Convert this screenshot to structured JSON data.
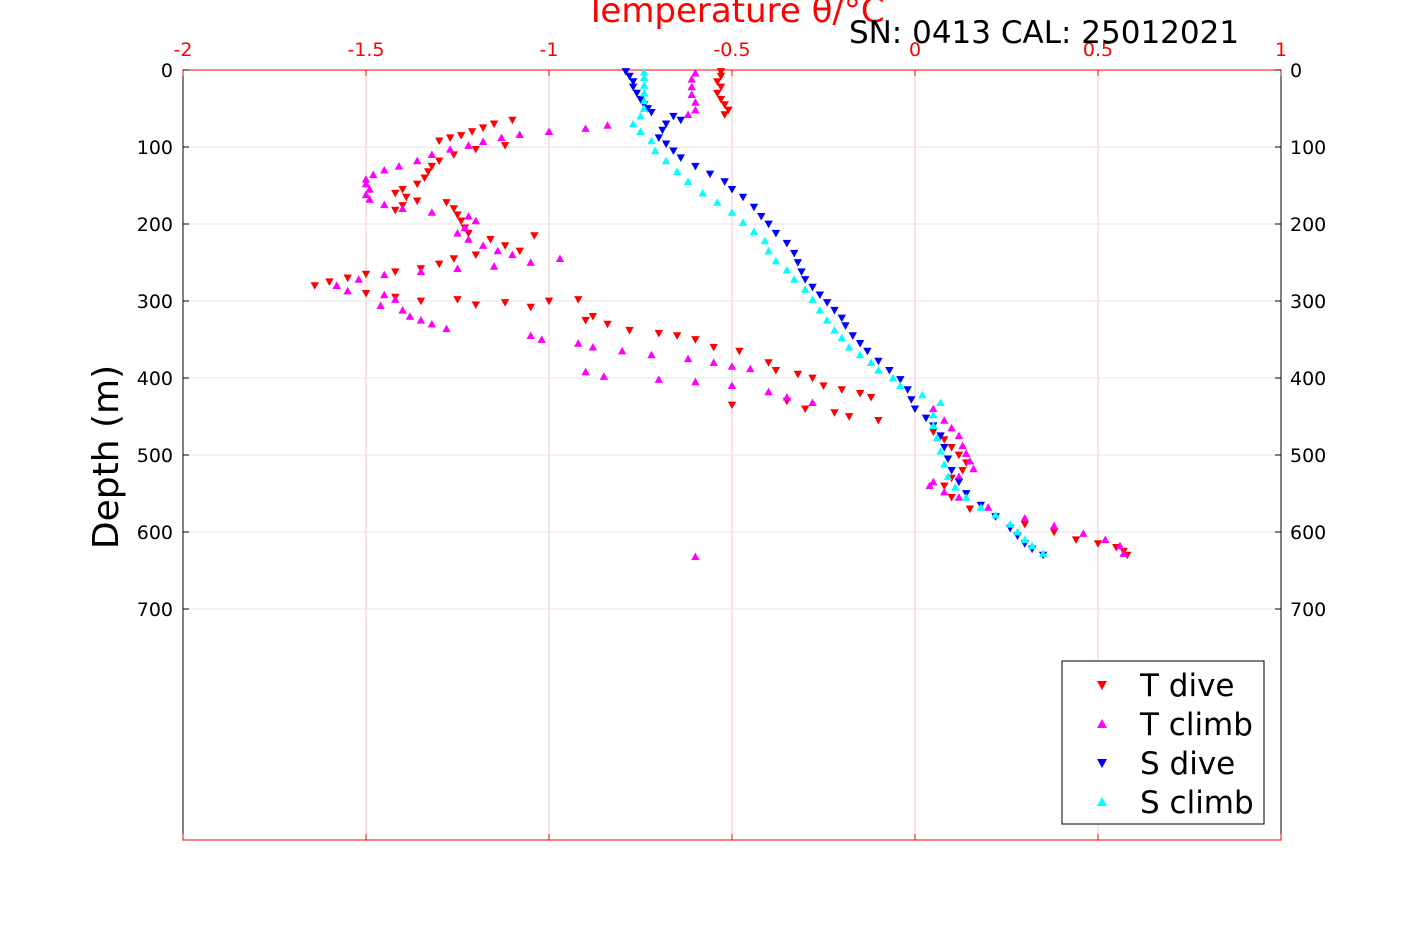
{
  "chart_data": {
    "type": "scatter",
    "title": "Temperature θ/°C",
    "subtitle": "SN: 0413  CAL: 25012021",
    "ylabel": "Depth (m)",
    "xlim": [
      -2,
      1
    ],
    "ylim": [
      0,
      1000
    ],
    "y_reversed": true,
    "x_ticks": [
      "-2",
      "-1.5",
      "-1",
      "-0.5",
      "0",
      "0.5",
      "1"
    ],
    "x_tick_values": [
      -2,
      -1.5,
      -1,
      -0.5,
      0,
      0.5,
      1
    ],
    "y_ticks": [
      "0",
      "100",
      "200",
      "300",
      "400",
      "500",
      "600",
      "700"
    ],
    "y_tick_values": [
      0,
      100,
      200,
      300,
      400,
      500,
      600,
      700
    ],
    "grid": true,
    "legend_position": "bottom-right",
    "colors": {
      "axis_top": "#ff0000",
      "axis": "#000000",
      "grid": "#e4e4e4",
      "grid_red": "#f5c7c7"
    },
    "series": [
      {
        "name": "T dive",
        "marker": "triangle-down",
        "color": "#ff0000",
        "points": [
          [
            -0.53,
            2
          ],
          [
            -0.53,
            8
          ],
          [
            -0.54,
            15
          ],
          [
            -0.53,
            22
          ],
          [
            -0.54,
            30
          ],
          [
            -0.53,
            38
          ],
          [
            -0.52,
            45
          ],
          [
            -0.51,
            52
          ],
          [
            -0.52,
            58
          ],
          [
            -1.1,
            65
          ],
          [
            -1.15,
            70
          ],
          [
            -1.18,
            75
          ],
          [
            -1.21,
            80
          ],
          [
            -1.24,
            85
          ],
          [
            -1.27,
            88
          ],
          [
            -1.3,
            92
          ],
          [
            -1.12,
            98
          ],
          [
            -1.2,
            103
          ],
          [
            -1.26,
            110
          ],
          [
            -1.3,
            118
          ],
          [
            -1.32,
            125
          ],
          [
            -1.33,
            132
          ],
          [
            -1.34,
            140
          ],
          [
            -1.36,
            148
          ],
          [
            -1.4,
            155
          ],
          [
            -1.42,
            160
          ],
          [
            -1.39,
            165
          ],
          [
            -1.36,
            170
          ],
          [
            -1.4,
            176
          ],
          [
            -1.42,
            182
          ],
          [
            -1.28,
            172
          ],
          [
            -1.26,
            180
          ],
          [
            -1.25,
            188
          ],
          [
            -1.24,
            196
          ],
          [
            -1.23,
            205
          ],
          [
            -1.22,
            212
          ],
          [
            -1.16,
            220
          ],
          [
            -1.12,
            228
          ],
          [
            -1.08,
            235
          ],
          [
            -1.04,
            215
          ],
          [
            -1.2,
            240
          ],
          [
            -1.26,
            245
          ],
          [
            -1.3,
            252
          ],
          [
            -1.35,
            258
          ],
          [
            -1.42,
            262
          ],
          [
            -1.5,
            265
          ],
          [
            -1.55,
            270
          ],
          [
            -1.6,
            275
          ],
          [
            -1.64,
            280
          ],
          [
            -1.5,
            290
          ],
          [
            -1.42,
            295
          ],
          [
            -1.35,
            300
          ],
          [
            -1.25,
            298
          ],
          [
            -1.2,
            305
          ],
          [
            -1.12,
            302
          ],
          [
            -1.05,
            308
          ],
          [
            -1.0,
            300
          ],
          [
            -0.92,
            298
          ],
          [
            -0.88,
            320
          ],
          [
            -0.9,
            325
          ],
          [
            -0.84,
            330
          ],
          [
            -0.78,
            338
          ],
          [
            -0.7,
            342
          ],
          [
            -0.65,
            345
          ],
          [
            -0.6,
            350
          ],
          [
            -0.55,
            360
          ],
          [
            -0.48,
            365
          ],
          [
            -0.4,
            380
          ],
          [
            -0.38,
            390
          ],
          [
            -0.32,
            395
          ],
          [
            -0.28,
            400
          ],
          [
            -0.25,
            410
          ],
          [
            -0.2,
            415
          ],
          [
            -0.15,
            420
          ],
          [
            -0.12,
            425
          ],
          [
            -0.35,
            430
          ],
          [
            -0.5,
            435
          ],
          [
            -0.3,
            440
          ],
          [
            -0.22,
            445
          ],
          [
            -0.18,
            450
          ],
          [
            -0.1,
            455
          ],
          [
            0.05,
            470
          ],
          [
            0.08,
            480
          ],
          [
            0.1,
            490
          ],
          [
            0.12,
            500
          ],
          [
            0.14,
            510
          ],
          [
            0.13,
            520
          ],
          [
            0.1,
            530
          ],
          [
            0.08,
            540
          ],
          [
            0.1,
            555
          ],
          [
            0.15,
            570
          ],
          [
            0.22,
            580
          ],
          [
            0.3,
            590
          ],
          [
            0.38,
            600
          ],
          [
            0.44,
            610
          ],
          [
            0.5,
            615
          ],
          [
            0.55,
            620
          ],
          [
            0.57,
            625
          ],
          [
            0.58,
            630
          ]
        ]
      },
      {
        "name": "T climb",
        "marker": "triangle-up",
        "color": "#ff00ff",
        "points": [
          [
            -0.6,
            632
          ],
          [
            -0.6,
            4
          ],
          [
            -0.61,
            12
          ],
          [
            -0.61,
            22
          ],
          [
            -0.61,
            32
          ],
          [
            -0.6,
            42
          ],
          [
            -0.6,
            52
          ],
          [
            -0.62,
            58
          ],
          [
            -0.84,
            72
          ],
          [
            -0.9,
            76
          ],
          [
            -1.0,
            80
          ],
          [
            -1.08,
            84
          ],
          [
            -1.13,
            88
          ],
          [
            -1.18,
            93
          ],
          [
            -1.22,
            98
          ],
          [
            -1.27,
            103
          ],
          [
            -1.32,
            110
          ],
          [
            -1.36,
            118
          ],
          [
            -1.41,
            125
          ],
          [
            -1.45,
            130
          ],
          [
            -1.48,
            136
          ],
          [
            -1.5,
            142
          ],
          [
            -1.5,
            148
          ],
          [
            -1.49,
            155
          ],
          [
            -1.5,
            162
          ],
          [
            -1.49,
            168
          ],
          [
            -1.45,
            175
          ],
          [
            -1.4,
            180
          ],
          [
            -1.32,
            185
          ],
          [
            -1.22,
            190
          ],
          [
            -1.2,
            196
          ],
          [
            -1.23,
            205
          ],
          [
            -1.25,
            212
          ],
          [
            -1.22,
            220
          ],
          [
            -1.18,
            228
          ],
          [
            -1.14,
            235
          ],
          [
            -1.1,
            240
          ],
          [
            -0.97,
            245
          ],
          [
            -1.05,
            250
          ],
          [
            -1.15,
            255
          ],
          [
            -1.25,
            258
          ],
          [
            -1.35,
            262
          ],
          [
            -1.45,
            266
          ],
          [
            -1.52,
            272
          ],
          [
            -1.58,
            280
          ],
          [
            -1.55,
            287
          ],
          [
            -1.45,
            292
          ],
          [
            -1.42,
            298
          ],
          [
            -1.46,
            306
          ],
          [
            -1.4,
            312
          ],
          [
            -1.38,
            320
          ],
          [
            -1.35,
            325
          ],
          [
            -1.32,
            330
          ],
          [
            -1.28,
            336
          ],
          [
            -1.05,
            345
          ],
          [
            -1.02,
            350
          ],
          [
            -0.92,
            355
          ],
          [
            -0.88,
            360
          ],
          [
            -0.8,
            365
          ],
          [
            -0.72,
            370
          ],
          [
            -0.62,
            375
          ],
          [
            -0.55,
            380
          ],
          [
            -0.5,
            385
          ],
          [
            -0.45,
            388
          ],
          [
            -0.9,
            392
          ],
          [
            -0.85,
            398
          ],
          [
            -0.7,
            402
          ],
          [
            -0.6,
            405
          ],
          [
            -0.5,
            410
          ],
          [
            -0.4,
            418
          ],
          [
            -0.35,
            425
          ],
          [
            -0.28,
            432
          ],
          [
            0.05,
            440
          ],
          [
            0.08,
            455
          ],
          [
            0.1,
            465
          ],
          [
            0.12,
            475
          ],
          [
            0.13,
            488
          ],
          [
            0.14,
            498
          ],
          [
            0.15,
            508
          ],
          [
            0.16,
            518
          ],
          [
            0.12,
            528
          ],
          [
            0.05,
            535
          ],
          [
            0.04,
            540
          ],
          [
            0.08,
            548
          ],
          [
            0.12,
            555
          ],
          [
            0.2,
            568
          ],
          [
            0.3,
            582
          ],
          [
            0.38,
            592
          ],
          [
            0.46,
            602
          ],
          [
            0.52,
            610
          ],
          [
            0.56,
            618
          ],
          [
            0.57,
            628
          ]
        ]
      },
      {
        "name": "S dive",
        "marker": "triangle-down",
        "color": "#0000ff",
        "points": [
          [
            -0.79,
            2
          ],
          [
            -0.78,
            8
          ],
          [
            -0.77,
            15
          ],
          [
            -0.77,
            22
          ],
          [
            -0.76,
            30
          ],
          [
            -0.75,
            38
          ],
          [
            -0.74,
            45
          ],
          [
            -0.73,
            50
          ],
          [
            -0.72,
            55
          ],
          [
            -0.66,
            60
          ],
          [
            -0.64,
            65
          ],
          [
            -0.68,
            70
          ],
          [
            -0.69,
            78
          ],
          [
            -0.7,
            88
          ],
          [
            -0.68,
            96
          ],
          [
            -0.66,
            105
          ],
          [
            -0.64,
            114
          ],
          [
            -0.6,
            125
          ],
          [
            -0.56,
            135
          ],
          [
            -0.52,
            145
          ],
          [
            -0.5,
            155
          ],
          [
            -0.47,
            165
          ],
          [
            -0.44,
            178
          ],
          [
            -0.42,
            190
          ],
          [
            -0.4,
            200
          ],
          [
            -0.38,
            212
          ],
          [
            -0.35,
            225
          ],
          [
            -0.33,
            238
          ],
          [
            -0.32,
            250
          ],
          [
            -0.31,
            262
          ],
          [
            -0.3,
            272
          ],
          [
            -0.28,
            282
          ],
          [
            -0.26,
            292
          ],
          [
            -0.24,
            302
          ],
          [
            -0.22,
            312
          ],
          [
            -0.2,
            322
          ],
          [
            -0.19,
            332
          ],
          [
            -0.17,
            345
          ],
          [
            -0.15,
            355
          ],
          [
            -0.13,
            365
          ],
          [
            -0.1,
            378
          ],
          [
            -0.07,
            390
          ],
          [
            -0.04,
            402
          ],
          [
            -0.02,
            415
          ],
          [
            -0.01,
            428
          ],
          [
            0.0,
            440
          ],
          [
            0.03,
            452
          ],
          [
            0.05,
            462
          ],
          [
            0.07,
            475
          ],
          [
            0.08,
            490
          ],
          [
            0.09,
            505
          ],
          [
            0.1,
            520
          ],
          [
            0.12,
            535
          ],
          [
            0.14,
            550
          ],
          [
            0.18,
            565
          ],
          [
            0.22,
            580
          ],
          [
            0.26,
            595
          ],
          [
            0.28,
            605
          ],
          [
            0.3,
            615
          ],
          [
            0.32,
            622
          ],
          [
            0.35,
            630
          ]
        ]
      },
      {
        "name": "S climb",
        "marker": "triangle-up",
        "color": "#00ffff",
        "points": [
          [
            0.35,
            628
          ],
          [
            0.32,
            618
          ],
          [
            0.3,
            610
          ],
          [
            0.28,
            600
          ],
          [
            0.26,
            590
          ],
          [
            0.22,
            578
          ],
          [
            0.18,
            568
          ],
          [
            0.14,
            555
          ],
          [
            0.11,
            542
          ],
          [
            0.09,
            528
          ],
          [
            0.08,
            512
          ],
          [
            0.07,
            495
          ],
          [
            0.06,
            478
          ],
          [
            0.05,
            462
          ],
          [
            0.05,
            448
          ],
          [
            0.07,
            432
          ],
          [
            0.02,
            422
          ],
          [
            -0.04,
            410
          ],
          [
            -0.06,
            400
          ],
          [
            -0.1,
            390
          ],
          [
            -0.12,
            380
          ],
          [
            -0.15,
            370
          ],
          [
            -0.18,
            360
          ],
          [
            -0.2,
            348
          ],
          [
            -0.22,
            338
          ],
          [
            -0.24,
            325
          ],
          [
            -0.26,
            312
          ],
          [
            -0.28,
            298
          ],
          [
            -0.3,
            285
          ],
          [
            -0.33,
            272
          ],
          [
            -0.35,
            260
          ],
          [
            -0.38,
            248
          ],
          [
            -0.4,
            235
          ],
          [
            -0.41,
            222
          ],
          [
            -0.44,
            210
          ],
          [
            -0.47,
            198
          ],
          [
            -0.5,
            185
          ],
          [
            -0.54,
            172
          ],
          [
            -0.58,
            160
          ],
          [
            -0.62,
            145
          ],
          [
            -0.65,
            132
          ],
          [
            -0.68,
            118
          ],
          [
            -0.71,
            105
          ],
          [
            -0.72,
            92
          ],
          [
            -0.75,
            80
          ],
          [
            -0.77,
            70
          ],
          [
            -0.75,
            60
          ],
          [
            -0.74,
            50
          ],
          [
            -0.74,
            40
          ],
          [
            -0.74,
            30
          ],
          [
            -0.74,
            20
          ],
          [
            -0.74,
            10
          ],
          [
            -0.74,
            3
          ]
        ]
      }
    ]
  }
}
